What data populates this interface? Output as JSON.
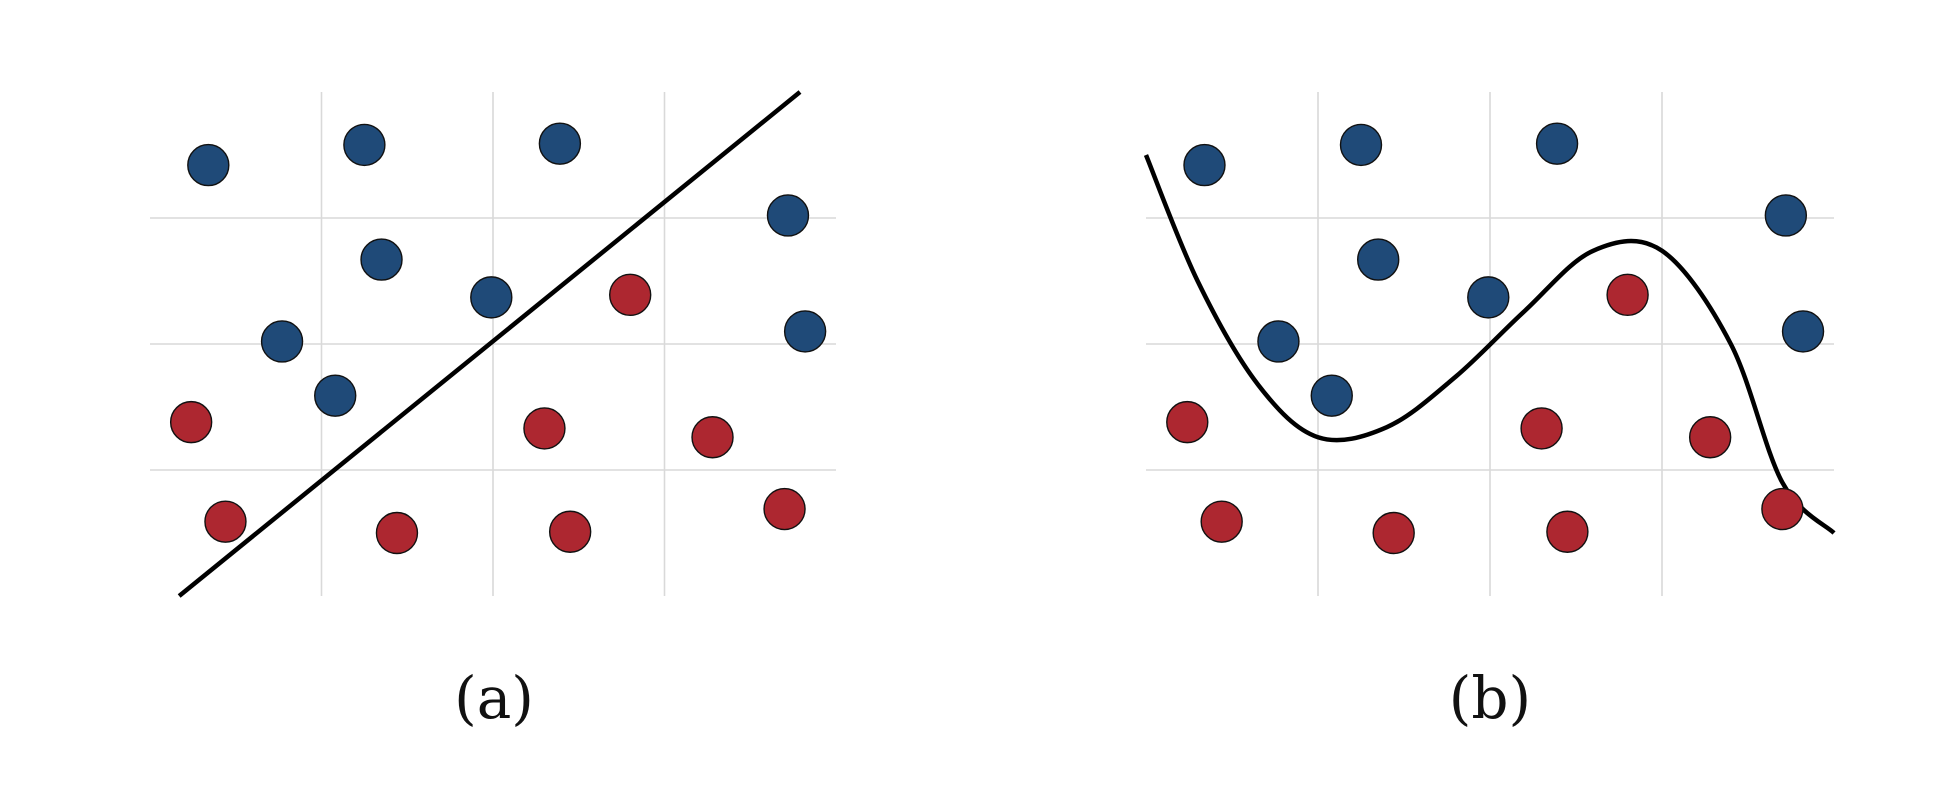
{
  "colors": {
    "blue": "#1f4a78",
    "red": "#ad2730",
    "grid": "#d9d9d9",
    "boundary": "#000000"
  },
  "chart_data": [
    {
      "type": "scatter",
      "caption": "(a)",
      "xlim": [
        0,
        4
      ],
      "ylim": [
        0,
        4
      ],
      "grid": true,
      "series": [
        {
          "color": "blue",
          "points": [
            [
              0.34,
              3.42
            ],
            [
              1.25,
              3.58
            ],
            [
              1.35,
              2.67
            ],
            [
              0.77,
              2.02
            ],
            [
              1.08,
              1.59
            ],
            [
              2.39,
              3.59
            ],
            [
              1.99,
              2.37
            ],
            [
              3.72,
              3.02
            ],
            [
              3.82,
              2.1
            ]
          ]
        },
        {
          "color": "red",
          "points": [
            [
              0.24,
              1.38
            ],
            [
              0.44,
              0.59
            ],
            [
              1.44,
              0.5
            ],
            [
              2.3,
              1.33
            ],
            [
              2.8,
              2.39
            ],
            [
              3.28,
              1.26
            ],
            [
              2.45,
              0.51
            ],
            [
              3.7,
              0.69
            ]
          ]
        }
      ],
      "boundary": {
        "kind": "linear",
        "points": [
          [
            0.17,
            0
          ],
          [
            3.79,
            4
          ]
        ]
      }
    },
    {
      "type": "scatter",
      "caption": "(b)",
      "xlim": [
        0,
        4
      ],
      "ylim": [
        0,
        4
      ],
      "grid": true,
      "series": [
        {
          "color": "blue",
          "points": [
            [
              0.34,
              3.42
            ],
            [
              1.25,
              3.58
            ],
            [
              1.35,
              2.67
            ],
            [
              0.77,
              2.02
            ],
            [
              1.08,
              1.59
            ],
            [
              2.39,
              3.59
            ],
            [
              1.99,
              2.37
            ],
            [
              3.72,
              3.02
            ],
            [
              3.82,
              2.1
            ]
          ]
        },
        {
          "color": "red",
          "points": [
            [
              0.24,
              1.38
            ],
            [
              0.44,
              0.59
            ],
            [
              1.44,
              0.5
            ],
            [
              2.3,
              1.33
            ],
            [
              2.8,
              2.39
            ],
            [
              3.28,
              1.26
            ],
            [
              2.45,
              0.51
            ],
            [
              3.7,
              0.69
            ]
          ]
        }
      ],
      "boundary": {
        "kind": "cubic",
        "points": [
          [
            0.0,
            3.5
          ],
          [
            0.3,
            2.5
          ],
          [
            0.65,
            1.68
          ],
          [
            1.0,
            1.26
          ],
          [
            1.4,
            1.34
          ],
          [
            1.8,
            1.74
          ],
          [
            2.2,
            2.26
          ],
          [
            2.6,
            2.74
          ],
          [
            3.0,
            2.74
          ],
          [
            3.4,
            2.0
          ],
          [
            3.7,
            0.9
          ],
          [
            4.0,
            0.5
          ]
        ]
      }
    }
  ]
}
